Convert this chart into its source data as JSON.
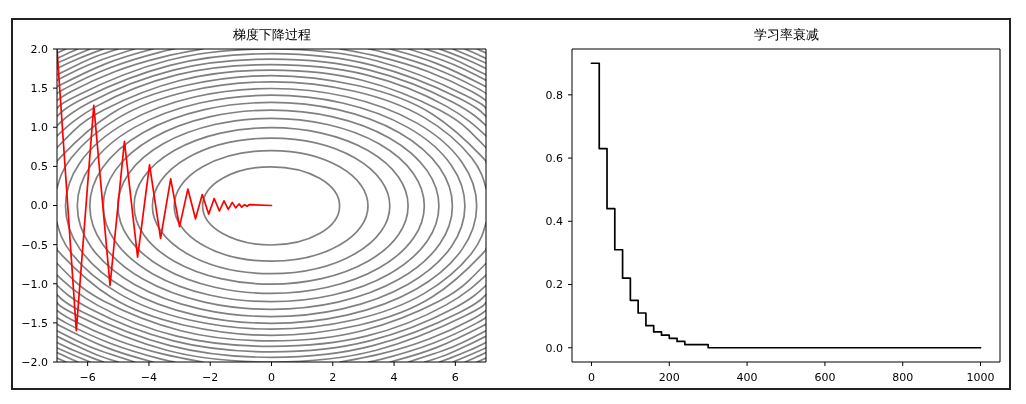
{
  "chart_data": [
    {
      "type": "line",
      "title": "梯度下降过程",
      "xlim": [
        -7,
        7
      ],
      "ylim": [
        -2,
        2
      ],
      "xticks": [
        {
          "value": -6,
          "label": "−6"
        },
        {
          "value": -4,
          "label": "−4"
        },
        {
          "value": -2,
          "label": "−2"
        },
        0,
        2,
        4,
        6
      ],
      "yticks": [
        {
          "value": -2,
          "label": "−2.0"
        },
        {
          "value": -1.5,
          "label": "−1.5"
        },
        {
          "value": -1,
          "label": "−1.0"
        },
        {
          "value": -0.5,
          "label": "−0.5"
        },
        {
          "value": 0,
          "label": "0.0"
        },
        0.5,
        {
          "value": 1,
          "label": "1.0"
        },
        1.5,
        {
          "value": 2,
          "label": "2.0"
        }
      ],
      "series": [
        {
          "color": "#808080",
          "x": [
            -7,
            -6.53,
            -5,
            -2.71,
            0,
            2.71,
            5,
            6.53,
            7
          ],
          "values": [
            0.22,
            0.61,
            1.12,
            1.46,
            1.58,
            1.46,
            1.12,
            0.61,
            0.22
          ]
        },
        {
          "color": "#808080",
          "x": [
            -7,
            -6.53,
            -5,
            -2.71,
            0,
            2.71,
            5,
            6.53,
            7
          ],
          "values": [
            -0.22,
            -0.61,
            -1.12,
            -1.46,
            -1.58,
            -1.46,
            -1.12,
            -0.61,
            -0.22
          ]
        },
        {
          "color": "#808080",
          "x": [
            -7,
            -6.85,
            -5.24,
            -2.84,
            0,
            2.84,
            5.24,
            6.85,
            7
          ],
          "values": [
            0.55,
            0.63,
            1.17,
            1.53,
            1.66,
            1.53,
            1.17,
            0.63,
            0.55
          ]
        },
        {
          "color": "#808080",
          "x": [
            -7,
            -6.85,
            -5.24,
            -2.84,
            0,
            2.84,
            5.24,
            6.85,
            7
          ],
          "values": [
            -0.55,
            -0.63,
            -1.17,
            -1.53,
            -1.66,
            -1.53,
            -1.17,
            -0.63,
            -0.55
          ]
        },
        {
          "color": "#808080",
          "x": [
            -7,
            -6.44,
            -5.48,
            -2.96,
            0,
            2.96,
            5.48,
            6.44,
            7
          ],
          "values": [
            0.74,
            0.96,
            1.22,
            1.6,
            1.73,
            1.6,
            1.22,
            0.96,
            0.74
          ]
        },
        {
          "color": "#808080",
          "x": [
            -7,
            -6.44,
            -5.48,
            -2.96,
            0,
            2.96,
            5.48,
            6.44,
            7
          ],
          "values": [
            -0.74,
            -0.96,
            -1.22,
            -1.6,
            -1.73,
            -1.6,
            -1.22,
            -0.96,
            -0.74
          ]
        },
        {
          "color": "#808080",
          "x": [
            -7,
            -5.7,
            -3.09,
            0,
            3.09,
            5.7,
            7
          ],
          "values": [
            0.89,
            1.27,
            1.67,
            1.8,
            1.67,
            1.27,
            0.89
          ]
        },
        {
          "color": "#808080",
          "x": [
            -7,
            -5.7,
            -3.09,
            0,
            3.09,
            5.7,
            7
          ],
          "values": [
            -0.89,
            -1.27,
            -1.67,
            -1.8,
            -1.67,
            -1.27,
            -0.89
          ]
        },
        {
          "color": "#808080",
          "x": [
            -7,
            -5.92,
            -3.2,
            0,
            3.2,
            5.92,
            7
          ],
          "values": [
            1.02,
            1.32,
            1.73,
            1.87,
            1.73,
            1.32,
            1.02
          ]
        },
        {
          "color": "#808080",
          "x": [
            -7,
            -5.92,
            -3.2,
            0,
            3.2,
            5.92,
            7
          ],
          "values": [
            -1.02,
            -1.32,
            -1.73,
            -1.87,
            -1.73,
            -1.32,
            -1.02
          ]
        },
        {
          "color": "#808080",
          "x": [
            -7,
            -6.12,
            -3.31,
            0,
            3.31,
            6.12,
            7
          ],
          "values": [
            1.14,
            1.37,
            1.79,
            1.94,
            1.79,
            1.37,
            1.14
          ]
        },
        {
          "color": "#808080",
          "x": [
            -7,
            -6.12,
            -3.31,
            0,
            3.31,
            6.12,
            7
          ],
          "values": [
            -1.14,
            -1.37,
            -1.79,
            -1.94,
            -1.79,
            -1.37,
            -1.14
          ]
        },
        {
          "color": "#808080",
          "x": [
            -7,
            -6.32,
            -3.42,
            0,
            3.42,
            6.32,
            7
          ],
          "values": [
            1.24,
            1.41,
            1.85,
            2,
            1.85,
            1.41,
            1.24
          ]
        },
        {
          "color": "#808080",
          "x": [
            -7,
            -6.32,
            -3.42,
            0,
            3.42,
            6.32,
            7
          ],
          "values": [
            -1.24,
            -1.41,
            -1.85,
            -2,
            -1.85,
            -1.41,
            -1.24
          ]
        },
        {
          "color": "#808080",
          "x": [
            -7,
            -6.52,
            -5.12,
            -3.53,
            -2.24
          ],
          "values": [
            1.34,
            1.46,
            1.71,
            1.9,
            2
          ]
        },
        {
          "color": "#808080",
          "x": [
            2.24,
            3.53,
            5.12,
            6.52,
            7
          ],
          "values": [
            2,
            1.9,
            1.71,
            1.46,
            1.34
          ]
        },
        {
          "color": "#808080",
          "x": [
            2.24,
            3.53,
            5.12,
            6.52,
            7
          ],
          "values": [
            -2,
            -1.9,
            -1.71,
            -1.46,
            -1.34
          ]
        },
        {
          "color": "#808080",
          "x": [
            -7,
            -6.52,
            -5.12,
            -3.53,
            -2.24
          ],
          "values": [
            -1.34,
            -1.46,
            -1.71,
            -1.9,
            -2
          ]
        },
        {
          "color": "#808080",
          "x": [
            -7,
            -6.71,
            -5.27,
            -3.63,
            -3.16
          ],
          "values": [
            1.43,
            1.5,
            1.76,
            1.96,
            2
          ]
        },
        {
          "color": "#808080",
          "x": [
            3.16,
            3.63,
            5.27,
            6.71,
            7
          ],
          "values": [
            2,
            1.96,
            1.76,
            1.5,
            1.43
          ]
        },
        {
          "color": "#808080",
          "x": [
            3.16,
            3.63,
            5.27,
            6.71,
            7
          ],
          "values": [
            -2,
            -1.96,
            -1.76,
            -1.5,
            -1.43
          ]
        },
        {
          "color": "#808080",
          "x": [
            -7,
            -6.71,
            -5.27,
            -3.63,
            -3.16
          ],
          "values": [
            -1.43,
            -1.5,
            -1.76,
            -1.96,
            -2
          ]
        },
        {
          "color": "#808080",
          "x": [
            -7,
            -6.89,
            -5.42,
            -3.87
          ],
          "values": [
            1.52,
            1.54,
            1.81,
            2
          ]
        },
        {
          "color": "#808080",
          "x": [
            3.87,
            5.42,
            6.89,
            7
          ],
          "values": [
            2,
            1.81,
            1.54,
            1.52
          ]
        },
        {
          "color": "#808080",
          "x": [
            3.87,
            5.42,
            6.89,
            7
          ],
          "values": [
            -2,
            -1.81,
            -1.54,
            -1.52
          ]
        },
        {
          "color": "#808080",
          "x": [
            -7,
            -6.89,
            -5.42,
            -3.87
          ],
          "values": [
            -1.52,
            -1.54,
            -1.81,
            -2
          ]
        },
        {
          "color": "#808080",
          "x": [
            -7,
            -6.29,
            -5.56,
            -4.47
          ],
          "values": [
            1.6,
            1.74,
            1.86,
            2
          ]
        },
        {
          "color": "#808080",
          "x": [
            4.47,
            5.56,
            6.29,
            7
          ],
          "values": [
            2,
            1.86,
            1.74,
            1.6
          ]
        },
        {
          "color": "#808080",
          "x": [
            4.47,
            5.56,
            6.29,
            7
          ],
          "values": [
            -2,
            -1.86,
            -1.74,
            -1.6
          ]
        },
        {
          "color": "#808080",
          "x": [
            -7,
            -6.29,
            -5.56,
            -4.47
          ],
          "values": [
            -1.6,
            -1.74,
            -1.86,
            -2
          ]
        },
        {
          "color": "#808080",
          "x": [
            -7,
            -6.38,
            -5.69,
            -5
          ],
          "values": [
            1.67,
            1.79,
            1.91,
            2
          ]
        },
        {
          "color": "#808080",
          "x": [
            5,
            5.69,
            6.38,
            7
          ],
          "values": [
            2,
            1.91,
            1.79,
            1.67
          ]
        },
        {
          "color": "#808080",
          "x": [
            5,
            5.69,
            6.38,
            7
          ],
          "values": [
            -2,
            -1.91,
            -1.79,
            -1.67
          ]
        },
        {
          "color": "#808080",
          "x": [
            -7,
            -6.38,
            -5.69,
            -5
          ],
          "values": [
            -1.67,
            -1.79,
            -1.91,
            -2
          ]
        },
        {
          "color": "#808080",
          "x": [
            -7,
            -6.46,
            -5.83,
            -5.48
          ],
          "values": [
            1.75,
            1.85,
            1.95,
            2
          ]
        },
        {
          "color": "#808080",
          "x": [
            5.48,
            5.83,
            6.46,
            7
          ],
          "values": [
            2,
            1.95,
            1.85,
            1.75
          ]
        },
        {
          "color": "#808080",
          "x": [
            5.48,
            5.83,
            6.46,
            7
          ],
          "values": [
            -2,
            -1.95,
            -1.85,
            -1.75
          ]
        },
        {
          "color": "#808080",
          "x": [
            -7,
            -6.46,
            -5.83,
            -5.48
          ],
          "values": [
            -1.75,
            -1.85,
            -1.95,
            -2
          ]
        },
        {
          "color": "#808080",
          "x": [
            -7,
            -6.47,
            -5.92
          ],
          "values": [
            1.82,
            1.91,
            2
          ]
        },
        {
          "color": "#808080",
          "x": [
            5.92,
            6.47,
            7
          ],
          "values": [
            2,
            1.91,
            1.82
          ]
        },
        {
          "color": "#808080",
          "x": [
            5.92,
            6.47,
            7
          ],
          "values": [
            -2,
            -1.91,
            -1.82
          ]
        },
        {
          "color": "#808080",
          "x": [
            -7,
            -6.47,
            -5.92
          ],
          "values": [
            -1.82,
            -1.91,
            -2
          ]
        },
        {
          "color": "#808080",
          "x": [
            -7,
            -6.67,
            -6.32
          ],
          "values": [
            1.88,
            1.94,
            2
          ]
        },
        {
          "color": "#808080",
          "x": [
            6.32,
            6.67,
            7
          ],
          "values": [
            2,
            1.94,
            1.88
          ]
        },
        {
          "color": "#808080",
          "x": [
            6.32,
            6.67,
            7
          ],
          "values": [
            -2,
            -1.94,
            -1.88
          ]
        },
        {
          "color": "#808080",
          "x": [
            -7,
            -6.67,
            -6.32
          ],
          "values": [
            -1.88,
            -1.94,
            -2
          ]
        },
        {
          "color": "#808080",
          "x": [
            -7,
            -6.71
          ],
          "values": [
            1.95,
            2
          ]
        },
        {
          "color": "#808080",
          "x": [
            6.71,
            7
          ],
          "values": [
            2,
            1.95
          ]
        },
        {
          "color": "#808080",
          "x": [
            6.71,
            7
          ],
          "values": [
            -2,
            -1.95
          ]
        },
        {
          "color": "#808080",
          "x": [
            -7,
            -6.71
          ],
          "values": [
            -1.95,
            -2
          ]
        },
        {
          "color": "#ff0000",
          "x": [
            -7,
            -6.37,
            -5.8,
            -5.27,
            -4.8,
            -4.37,
            -3.98,
            -3.62,
            -3.29,
            -3,
            -2.73,
            -2.48,
            -2.26,
            -2.05,
            -1.87,
            -1.7,
            -1.55,
            -1.41,
            -1.28,
            -1.17,
            -1.06,
            -0.97,
            -0.88,
            -0.8,
            -0.73,
            0
          ],
          "values": [
            2,
            -1.6,
            1.28,
            -1.02,
            0.82,
            -0.66,
            0.52,
            -0.42,
            0.34,
            -0.27,
            0.21,
            -0.17,
            0.14,
            -0.11,
            0.09,
            -0.07,
            0.06,
            -0.05,
            0.04,
            -0.03,
            0.02,
            -0.02,
            0.01,
            -0.01,
            0.01,
            0
          ]
        }
      ]
    },
    {
      "type": "step",
      "title": "学习率衰减",
      "x": [
        0,
        20,
        40,
        60,
        80,
        100,
        120,
        140,
        160,
        180,
        200,
        220,
        240,
        260,
        280,
        300,
        1000
      ],
      "values": [
        0.9,
        0.63,
        0.44,
        0.31,
        0.22,
        0.15,
        0.11,
        0.07,
        0.05,
        0.04,
        0.03,
        0.02,
        0.01,
        0.01,
        0.01,
        0,
        0
      ],
      "color": "#000000",
      "xlim": [
        -50,
        1050
      ],
      "ylim": [
        -0.045,
        0.945
      ],
      "xticks": [
        0,
        200,
        400,
        600,
        800,
        1000
      ],
      "yticks": [
        {
          "value": 0,
          "label": "0.0"
        },
        0.2,
        0.4,
        0.6,
        0.8
      ]
    }
  ]
}
